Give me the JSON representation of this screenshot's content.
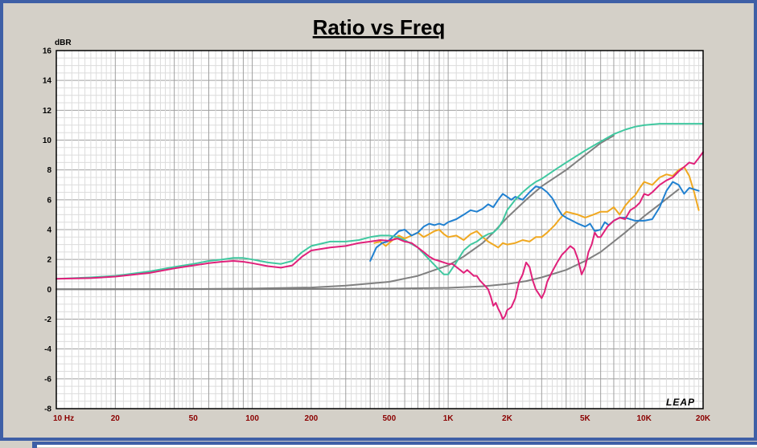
{
  "chart_data": {
    "type": "line",
    "title": "Ratio vs Freq",
    "ylabel": "dBR",
    "xscale": "log",
    "xlim": [
      10,
      20000
    ],
    "ylim": [
      -8,
      16
    ],
    "grid": true,
    "y_ticks": [
      {
        "value": -8,
        "label": "-8"
      },
      {
        "value": -6,
        "label": "-6"
      },
      {
        "value": -4,
        "label": "-4"
      },
      {
        "value": -2,
        "label": "-2"
      },
      {
        "value": 0,
        "label": "0"
      },
      {
        "value": 2,
        "label": "2"
      },
      {
        "value": 4,
        "label": "4"
      },
      {
        "value": 6,
        "label": "6"
      },
      {
        "value": 8,
        "label": "8"
      },
      {
        "value": 10,
        "label": "10"
      },
      {
        "value": 12,
        "label": "12"
      },
      {
        "value": 14,
        "label": "14"
      },
      {
        "value": 16,
        "label": "16"
      }
    ],
    "x_ticks": [
      {
        "value": 10,
        "label": "10  Hz"
      },
      {
        "value": 20,
        "label": "20"
      },
      {
        "value": 50,
        "label": "50"
      },
      {
        "value": 100,
        "label": "100"
      },
      {
        "value": 200,
        "label": "200"
      },
      {
        "value": 500,
        "label": "500"
      },
      {
        "value": 1000,
        "label": "1K"
      },
      {
        "value": 2000,
        "label": "2K"
      },
      {
        "value": 5000,
        "label": "5K"
      },
      {
        "value": 10000,
        "label": "10K"
      },
      {
        "value": 20000,
        "label": "20K"
      }
    ],
    "series": [
      {
        "color": "#808080",
        "points": [
          [
            10,
            0
          ],
          [
            50,
            0.02
          ],
          [
            100,
            0.05
          ],
          [
            200,
            0.12
          ],
          [
            300,
            0.25
          ],
          [
            500,
            0.5
          ],
          [
            700,
            0.9
          ],
          [
            900,
            1.4
          ],
          [
            1000,
            1.6
          ],
          [
            1200,
            2.2
          ],
          [
            1500,
            3.1
          ],
          [
            1700,
            3.8
          ],
          [
            2000,
            4.8
          ],
          [
            2500,
            6.0
          ],
          [
            3000,
            6.9
          ],
          [
            4000,
            8.0
          ],
          [
            5000,
            9.0
          ],
          [
            6000,
            9.8
          ],
          [
            7000,
            10.3
          ]
        ]
      },
      {
        "color": "#808080",
        "points": [
          [
            10,
            0
          ],
          [
            100,
            0.01
          ],
          [
            200,
            0.02
          ],
          [
            500,
            0.05
          ],
          [
            1000,
            0.1
          ],
          [
            1500,
            0.2
          ],
          [
            2000,
            0.35
          ],
          [
            2500,
            0.55
          ],
          [
            3000,
            0.8
          ],
          [
            4000,
            1.3
          ],
          [
            5000,
            1.9
          ],
          [
            6000,
            2.5
          ],
          [
            7000,
            3.2
          ],
          [
            8000,
            3.8
          ],
          [
            10000,
            4.9
          ],
          [
            12000,
            5.7
          ],
          [
            15000,
            6.7
          ]
        ]
      },
      {
        "color": "#f0a820",
        "points": [
          [
            420,
            3.1
          ],
          [
            450,
            3.2
          ],
          [
            480,
            2.9
          ],
          [
            520,
            3.3
          ],
          [
            560,
            3.6
          ],
          [
            600,
            3.4
          ],
          [
            650,
            3.6
          ],
          [
            700,
            3.8
          ],
          [
            750,
            3.5
          ],
          [
            800,
            3.7
          ],
          [
            850,
            3.9
          ],
          [
            900,
            4.0
          ],
          [
            950,
            3.7
          ],
          [
            1000,
            3.5
          ],
          [
            1100,
            3.6
          ],
          [
            1200,
            3.3
          ],
          [
            1300,
            3.7
          ],
          [
            1400,
            3.9
          ],
          [
            1500,
            3.5
          ],
          [
            1600,
            3.2
          ],
          [
            1700,
            3.0
          ],
          [
            1800,
            2.8
          ],
          [
            1900,
            3.1
          ],
          [
            2000,
            3.0
          ],
          [
            2200,
            3.1
          ],
          [
            2400,
            3.3
          ],
          [
            2600,
            3.2
          ],
          [
            2800,
            3.5
          ],
          [
            3000,
            3.5
          ],
          [
            3200,
            3.8
          ],
          [
            3500,
            4.3
          ],
          [
            3700,
            4.7
          ],
          [
            4000,
            5.2
          ],
          [
            4300,
            5.1
          ],
          [
            4600,
            5.0
          ],
          [
            5000,
            4.8
          ],
          [
            5500,
            5.0
          ],
          [
            6000,
            5.2
          ],
          [
            6500,
            5.2
          ],
          [
            7000,
            5.5
          ],
          [
            7500,
            5.0
          ],
          [
            8000,
            5.6
          ],
          [
            8500,
            6.0
          ],
          [
            9000,
            6.3
          ],
          [
            9500,
            6.8
          ],
          [
            10000,
            7.2
          ],
          [
            11000,
            7.0
          ],
          [
            12000,
            7.5
          ],
          [
            13000,
            7.7
          ],
          [
            14000,
            7.6
          ],
          [
            15000,
            8.0
          ],
          [
            16000,
            8.2
          ],
          [
            17000,
            7.6
          ],
          [
            18000,
            6.5
          ],
          [
            19000,
            5.3
          ]
        ]
      },
      {
        "color": "#2080d0",
        "points": [
          [
            400,
            1.9
          ],
          [
            430,
            2.8
          ],
          [
            460,
            3.1
          ],
          [
            490,
            3.2
          ],
          [
            520,
            3.5
          ],
          [
            560,
            3.9
          ],
          [
            600,
            4.0
          ],
          [
            650,
            3.6
          ],
          [
            700,
            3.8
          ],
          [
            750,
            4.2
          ],
          [
            800,
            4.4
          ],
          [
            850,
            4.3
          ],
          [
            900,
            4.4
          ],
          [
            950,
            4.3
          ],
          [
            1000,
            4.5
          ],
          [
            1100,
            4.7
          ],
          [
            1200,
            5.0
          ],
          [
            1300,
            5.3
          ],
          [
            1400,
            5.2
          ],
          [
            1500,
            5.4
          ],
          [
            1600,
            5.7
          ],
          [
            1700,
            5.5
          ],
          [
            1800,
            6.0
          ],
          [
            1900,
            6.4
          ],
          [
            2000,
            6.2
          ],
          [
            2100,
            6.0
          ],
          [
            2200,
            6.2
          ],
          [
            2400,
            6.0
          ],
          [
            2600,
            6.5
          ],
          [
            2800,
            6.9
          ],
          [
            3000,
            6.8
          ],
          [
            3200,
            6.5
          ],
          [
            3400,
            6.1
          ],
          [
            3600,
            5.5
          ],
          [
            3800,
            5.0
          ],
          [
            4000,
            4.8
          ],
          [
            4300,
            4.6
          ],
          [
            4600,
            4.4
          ],
          [
            5000,
            4.2
          ],
          [
            5300,
            4.4
          ],
          [
            5600,
            3.9
          ],
          [
            6000,
            4.0
          ],
          [
            6300,
            4.5
          ],
          [
            6600,
            4.3
          ],
          [
            7000,
            4.6
          ],
          [
            7500,
            4.8
          ],
          [
            8000,
            4.8
          ],
          [
            9000,
            4.6
          ],
          [
            10000,
            4.6
          ],
          [
            11000,
            4.7
          ],
          [
            12000,
            5.5
          ],
          [
            13000,
            6.6
          ],
          [
            14000,
            7.2
          ],
          [
            15000,
            7.0
          ],
          [
            16000,
            6.4
          ],
          [
            17000,
            6.8
          ],
          [
            18000,
            6.7
          ],
          [
            19000,
            6.6
          ]
        ]
      },
      {
        "color": "#40c8a0",
        "points": [
          [
            10,
            0.7
          ],
          [
            15,
            0.8
          ],
          [
            20,
            0.9
          ],
          [
            30,
            1.2
          ],
          [
            40,
            1.5
          ],
          [
            50,
            1.7
          ],
          [
            60,
            1.9
          ],
          [
            70,
            2.0
          ],
          [
            80,
            2.1
          ],
          [
            90,
            2.1
          ],
          [
            100,
            2.0
          ],
          [
            120,
            1.8
          ],
          [
            140,
            1.7
          ],
          [
            160,
            1.9
          ],
          [
            180,
            2.5
          ],
          [
            200,
            2.9
          ],
          [
            250,
            3.2
          ],
          [
            300,
            3.2
          ],
          [
            350,
            3.3
          ],
          [
            400,
            3.5
          ],
          [
            450,
            3.6
          ],
          [
            500,
            3.6
          ],
          [
            550,
            3.5
          ],
          [
            600,
            3.3
          ],
          [
            700,
            2.8
          ],
          [
            800,
            2.0
          ],
          [
            900,
            1.3
          ],
          [
            950,
            1.0
          ],
          [
            1000,
            1.0
          ],
          [
            1100,
            1.8
          ],
          [
            1200,
            2.6
          ],
          [
            1300,
            3.0
          ],
          [
            1400,
            3.2
          ],
          [
            1500,
            3.5
          ],
          [
            1600,
            3.7
          ],
          [
            1700,
            3.8
          ],
          [
            1800,
            4.1
          ],
          [
            1900,
            4.6
          ],
          [
            2000,
            5.3
          ],
          [
            2200,
            6.0
          ],
          [
            2400,
            6.5
          ],
          [
            2600,
            6.9
          ],
          [
            2800,
            7.2
          ],
          [
            3000,
            7.4
          ],
          [
            3500,
            8.0
          ],
          [
            4000,
            8.5
          ],
          [
            5000,
            9.3
          ],
          [
            6000,
            9.9
          ],
          [
            7000,
            10.4
          ],
          [
            8000,
            10.7
          ],
          [
            9000,
            10.9
          ],
          [
            10000,
            11.0
          ],
          [
            12000,
            11.1
          ],
          [
            15000,
            11.1
          ],
          [
            20000,
            11.1
          ]
        ]
      },
      {
        "color": "#e0207a",
        "points": [
          [
            10,
            0.7
          ],
          [
            15,
            0.75
          ],
          [
            20,
            0.85
          ],
          [
            30,
            1.1
          ],
          [
            40,
            1.4
          ],
          [
            50,
            1.6
          ],
          [
            60,
            1.75
          ],
          [
            70,
            1.85
          ],
          [
            80,
            1.9
          ],
          [
            90,
            1.85
          ],
          [
            100,
            1.75
          ],
          [
            120,
            1.55
          ],
          [
            140,
            1.45
          ],
          [
            160,
            1.6
          ],
          [
            180,
            2.2
          ],
          [
            200,
            2.6
          ],
          [
            250,
            2.8
          ],
          [
            300,
            2.9
          ],
          [
            350,
            3.1
          ],
          [
            400,
            3.2
          ],
          [
            450,
            3.3
          ],
          [
            500,
            3.25
          ],
          [
            550,
            3.4
          ],
          [
            600,
            3.2
          ],
          [
            650,
            3.1
          ],
          [
            700,
            2.8
          ],
          [
            750,
            2.5
          ],
          [
            800,
            2.2
          ],
          [
            850,
            2.0
          ],
          [
            900,
            1.9
          ],
          [
            950,
            1.8
          ],
          [
            1000,
            1.7
          ],
          [
            1050,
            1.7
          ],
          [
            1100,
            1.5
          ],
          [
            1150,
            1.3
          ],
          [
            1200,
            1.1
          ],
          [
            1250,
            1.3
          ],
          [
            1300,
            1.1
          ],
          [
            1350,
            0.9
          ],
          [
            1400,
            0.9
          ],
          [
            1450,
            0.6
          ],
          [
            1500,
            0.4
          ],
          [
            1550,
            0.2
          ],
          [
            1600,
            0.0
          ],
          [
            1650,
            -0.5
          ],
          [
            1700,
            -1.1
          ],
          [
            1750,
            -0.9
          ],
          [
            1800,
            -1.3
          ],
          [
            1850,
            -1.6
          ],
          [
            1900,
            -2.0
          ],
          [
            1950,
            -1.8
          ],
          [
            2000,
            -1.4
          ],
          [
            2100,
            -1.2
          ],
          [
            2200,
            -0.6
          ],
          [
            2300,
            0.5
          ],
          [
            2400,
            1.0
          ],
          [
            2500,
            1.8
          ],
          [
            2600,
            1.5
          ],
          [
            2700,
            0.6
          ],
          [
            2800,
            0.0
          ],
          [
            2900,
            -0.3
          ],
          [
            3000,
            -0.6
          ],
          [
            3100,
            -0.2
          ],
          [
            3200,
            0.5
          ],
          [
            3400,
            1.2
          ],
          [
            3600,
            1.8
          ],
          [
            3800,
            2.3
          ],
          [
            4000,
            2.6
          ],
          [
            4200,
            2.9
          ],
          [
            4400,
            2.7
          ],
          [
            4600,
            2.0
          ],
          [
            4800,
            1.0
          ],
          [
            5000,
            1.5
          ],
          [
            5200,
            2.5
          ],
          [
            5400,
            3.0
          ],
          [
            5600,
            3.8
          ],
          [
            5800,
            3.5
          ],
          [
            6000,
            3.5
          ],
          [
            6500,
            4.2
          ],
          [
            7000,
            4.6
          ],
          [
            7500,
            4.8
          ],
          [
            8000,
            4.7
          ],
          [
            8500,
            5.3
          ],
          [
            9000,
            5.5
          ],
          [
            9500,
            5.8
          ],
          [
            10000,
            6.4
          ],
          [
            10500,
            6.3
          ],
          [
            11000,
            6.5
          ],
          [
            12000,
            7.0
          ],
          [
            13000,
            7.3
          ],
          [
            14000,
            7.5
          ],
          [
            15000,
            7.9
          ],
          [
            16000,
            8.2
          ],
          [
            17000,
            8.5
          ],
          [
            18000,
            8.4
          ],
          [
            19000,
            8.8
          ],
          [
            20000,
            9.2
          ]
        ]
      }
    ]
  },
  "brand": "LEAP"
}
